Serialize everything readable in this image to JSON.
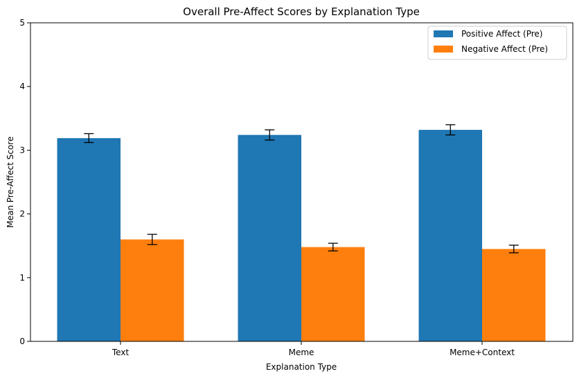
{
  "chart_data": {
    "type": "bar",
    "title": "Overall Pre-Affect Scores by Explanation Type",
    "xlabel": "Explanation Type",
    "ylabel": "Mean Pre-Affect Score",
    "categories": [
      "Text",
      "Meme",
      "Meme+Context"
    ],
    "ylim": [
      0,
      5
    ],
    "yticks": [
      0,
      1,
      2,
      3,
      4,
      5
    ],
    "grid": false,
    "legend_position": "top-right",
    "series": [
      {
        "name": "Positive Affect (Pre)",
        "color": "#1f77b4",
        "values": [
          3.19,
          3.24,
          3.32
        ],
        "errors": [
          0.07,
          0.08,
          0.08
        ]
      },
      {
        "name": "Negative Affect (Pre)",
        "color": "#ff7f0e",
        "values": [
          1.6,
          1.48,
          1.45
        ],
        "errors": [
          0.08,
          0.06,
          0.06
        ]
      }
    ]
  }
}
